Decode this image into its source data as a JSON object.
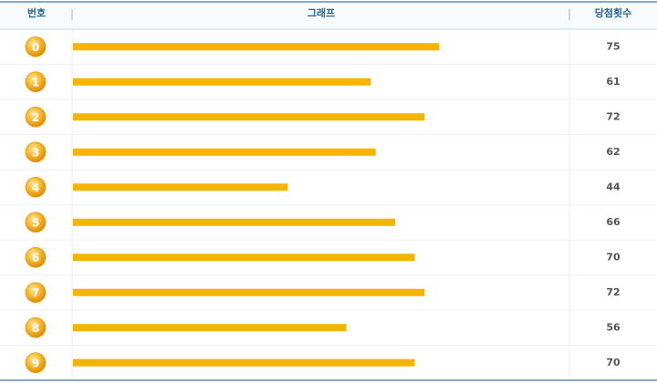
{
  "chart_data": {
    "type": "bar",
    "orientation": "horizontal",
    "columns": [
      "번호",
      "그래프",
      "당첨횟수"
    ],
    "categories": [
      "0",
      "1",
      "2",
      "3",
      "4",
      "5",
      "6",
      "7",
      "8",
      "9"
    ],
    "values": [
      75,
      61,
      72,
      62,
      44,
      66,
      70,
      72,
      56,
      70
    ],
    "color": "#f5b400"
  }
}
